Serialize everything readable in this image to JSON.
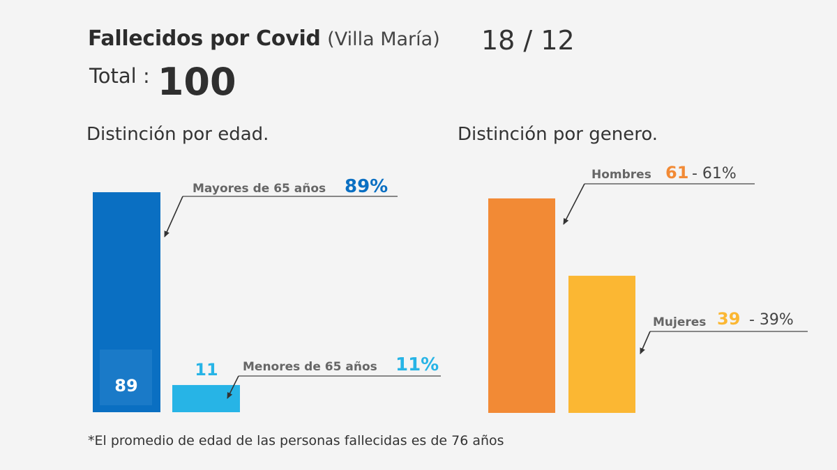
{
  "header": {
    "title_bold": "Fallecidos por Covid",
    "title_place": "(Villa María)",
    "date": "18 / 12",
    "total_label": "Total :",
    "total_value": "100"
  },
  "chart_data": [
    {
      "type": "bar",
      "title": "Distinción por edad.",
      "categories": [
        "Mayores de 65 años",
        "Menores de 65 años"
      ],
      "values": [
        89,
        11
      ],
      "percent_labels": [
        "89%",
        "11%"
      ],
      "colors": [
        "#0a6fc2",
        "#27b4e6"
      ],
      "ylim": [
        0,
        100
      ]
    },
    {
      "type": "bar",
      "title": "Distinción por genero.",
      "categories": [
        "Hombres",
        "Mujeres"
      ],
      "values": [
        61,
        39
      ],
      "percent_labels": [
        "- 61%",
        "- 39%"
      ],
      "colors": [
        "#f28a35",
        "#fbb733"
      ],
      "ylim": [
        0,
        100
      ]
    }
  ],
  "footnote": "*El promedio de edad de las personas fallecidas es de 76 años"
}
